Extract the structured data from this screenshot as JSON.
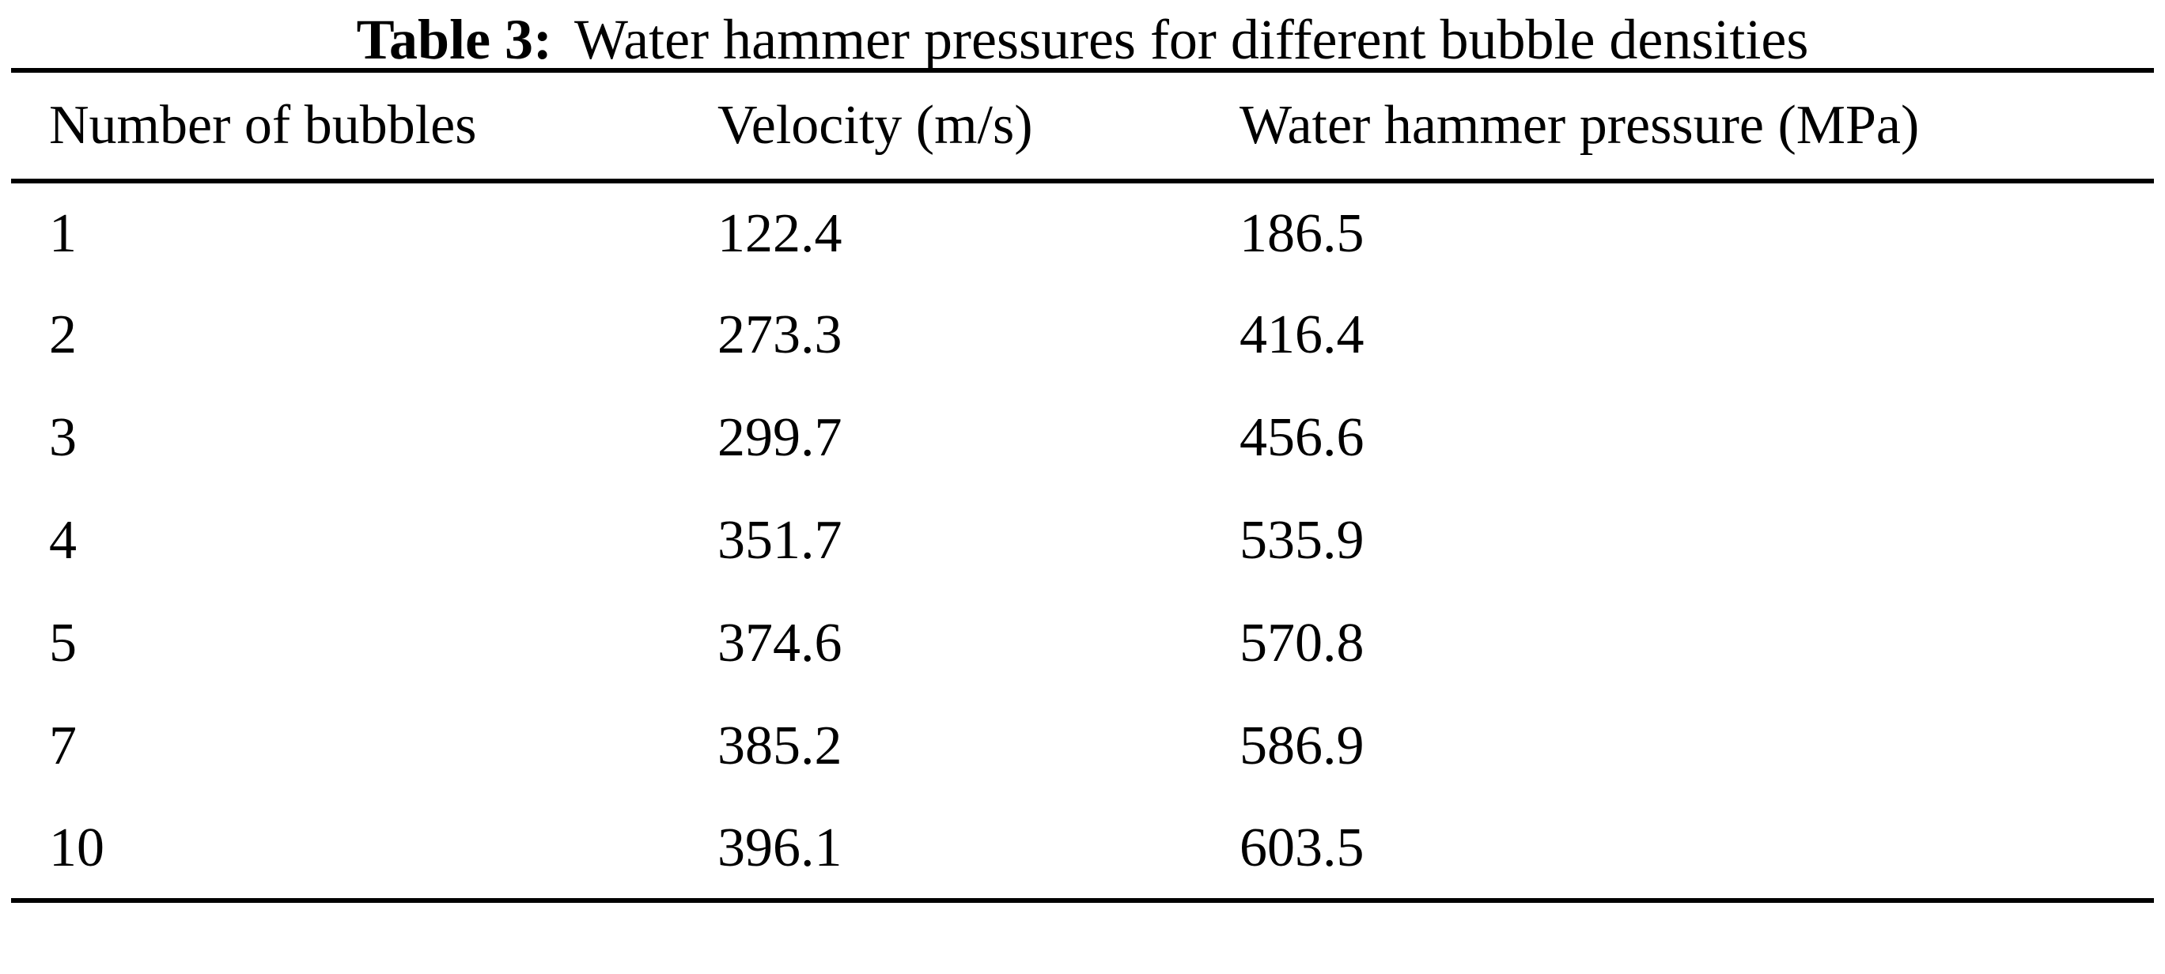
{
  "caption": {
    "label": "Table 3:",
    "text": "Water hammer pressures for different bubble densities"
  },
  "table": {
    "headers": [
      "Number of bubbles",
      "Velocity (m/s)",
      "Water hammer pressure (MPa)"
    ],
    "rows": [
      {
        "bubbles": "1",
        "velocity": "122.4",
        "pressure": "186.5"
      },
      {
        "bubbles": "2",
        "velocity": "273.3",
        "pressure": "416.4"
      },
      {
        "bubbles": "3",
        "velocity": "299.7",
        "pressure": "456.6"
      },
      {
        "bubbles": "4",
        "velocity": "351.7",
        "pressure": "535.9"
      },
      {
        "bubbles": "5",
        "velocity": "374.6",
        "pressure": "570.8"
      },
      {
        "bubbles": "7",
        "velocity": "385.2",
        "pressure": "586.9"
      },
      {
        "bubbles": "10",
        "velocity": "396.1",
        "pressure": "603.5"
      }
    ]
  },
  "chart_data": {
    "type": "table",
    "title": "Table 3: Water hammer pressures for different bubble densities",
    "columns": [
      "Number of bubbles",
      "Velocity (m/s)",
      "Water hammer pressure (MPa)"
    ],
    "rows": [
      [
        1,
        122.4,
        186.5
      ],
      [
        2,
        273.3,
        416.4
      ],
      [
        3,
        299.7,
        456.6
      ],
      [
        4,
        351.7,
        535.9
      ],
      [
        5,
        374.6,
        570.8
      ],
      [
        7,
        385.2,
        586.9
      ],
      [
        10,
        396.1,
        603.5
      ]
    ]
  }
}
